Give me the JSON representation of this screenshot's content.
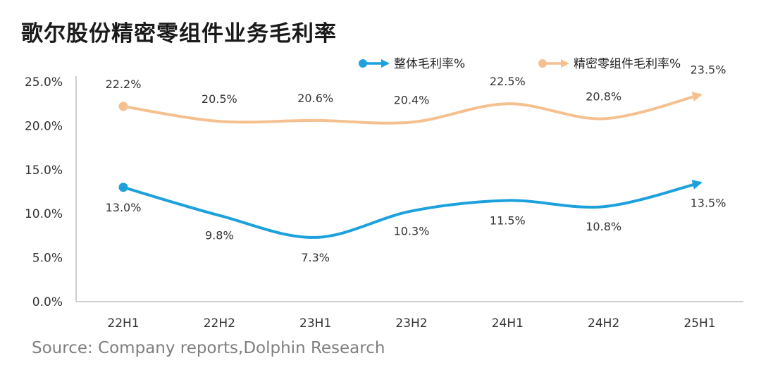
{
  "title": "歌尔股份精密零组件业务毛利率",
  "source": "Source: Company reports,Dolphin Research",
  "chart_data": {
    "type": "line",
    "title": "歌尔股份精密零组件业务毛利率",
    "xlabel": "",
    "ylabel": "",
    "categories": [
      "22H1",
      "22H2",
      "23H1",
      "23H2",
      "24H1",
      "24H2",
      "25H1"
    ],
    "yticks": [
      "0.0%",
      "5.0%",
      "10.0%",
      "15.0%",
      "20.0%",
      "25.0%"
    ],
    "ylim": [
      0,
      25
    ],
    "grid": false,
    "legend_position": "top-right",
    "series": [
      {
        "name": "整体毛利率%",
        "color": "#1da1dc",
        "values": [
          13.0,
          9.8,
          7.3,
          10.3,
          11.5,
          10.8,
          13.5
        ],
        "labels": [
          "13.0%",
          "9.8%",
          "7.3%",
          "10.3%",
          "11.5%",
          "10.8%",
          "13.5%"
        ],
        "label_position": "below"
      },
      {
        "name": "精密零组件毛利率%",
        "color": "#f5c08f",
        "values": [
          22.2,
          20.5,
          20.6,
          20.4,
          22.5,
          20.8,
          23.5
        ],
        "labels": [
          "22.2%",
          "20.5%",
          "20.6%",
          "20.4%",
          "22.5%",
          "20.8%",
          "23.5%"
        ],
        "label_position": "above"
      }
    ]
  }
}
